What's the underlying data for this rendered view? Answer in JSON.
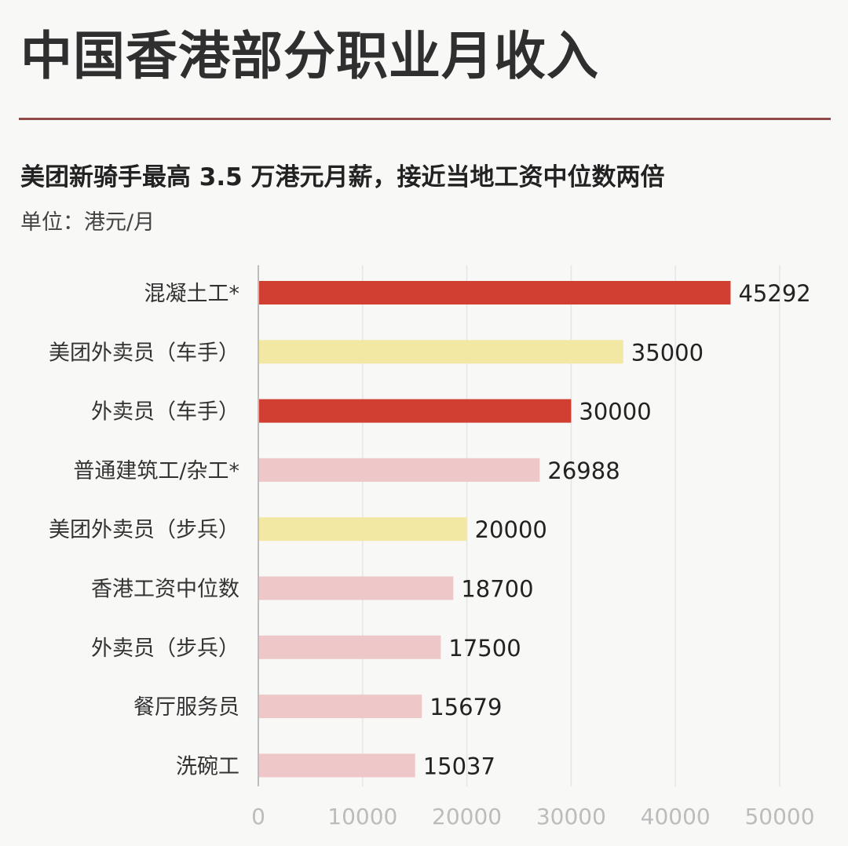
{
  "title": "中国香港部分职业月收入",
  "subtitle": "美团新骑手最高 3.5 万港元月薪，接近当地工资中位数两倍",
  "unit": "单位：港元/月",
  "chart_data": {
    "type": "bar",
    "orientation": "horizontal",
    "categories": [
      "混凝土工*",
      "美团外卖员（车手）",
      "外卖员（车手）",
      "普通建筑工/杂工*",
      "美团外卖员（步兵）",
      "香港工资中位数",
      "外卖员（步兵）",
      "餐厅服务员",
      "洗碗工"
    ],
    "values": [
      45292,
      35000,
      30000,
      26988,
      20000,
      18700,
      17500,
      15679,
      15037
    ],
    "data_labels": [
      "45292",
      "35000",
      "30000",
      "26988",
      "20000",
      "18700",
      "17500",
      "15679",
      "15037"
    ],
    "bar_colors": [
      "#d13f32",
      "#f3e7a4",
      "#d13f32",
      "#eec8c8",
      "#f3e7a4",
      "#eec8c8",
      "#eec8c8",
      "#eec8c8",
      "#eec8c8"
    ],
    "xlim": [
      0,
      50000
    ],
    "x_ticks": [
      0,
      10000,
      20000,
      30000,
      40000,
      50000
    ],
    "x_tick_labels": [
      "0",
      "10000",
      "20000",
      "30000",
      "40000",
      "50000"
    ],
    "grid": true,
    "xlabel": "",
    "ylabel": ""
  },
  "colors": {
    "background": "#f8f8f7",
    "title_rule": "#8f4b48",
    "gridline": "#e5e5e5",
    "axis": "#bdbdbd",
    "tick_label": "#bcbcbc",
    "category_label": "#333333",
    "value_label": "#222222"
  }
}
